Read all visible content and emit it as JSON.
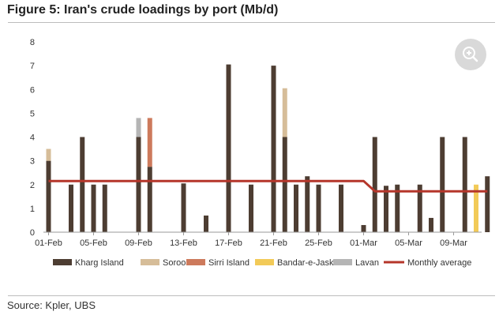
{
  "title": "Figure 5: Iran's crude loadings by port (Mb/d)",
  "source": "Source: Kpler, UBS",
  "colors": {
    "Kharg Island": "#4d3d32",
    "Soroosh": "#d6bd99",
    "Sirri Island": "#cd7a5c",
    "Bandar-e-Jask": "#f2ca58",
    "Lavan": "#b5b5b5",
    "Monthly average": "#b5362a"
  },
  "chart_data": {
    "type": "bar",
    "stacked": true,
    "title": "Figure 5: Iran's crude loadings by port (Mb/d)",
    "ylim": [
      0,
      8
    ],
    "yticks": [
      0,
      1,
      2,
      3,
      4,
      5,
      6,
      7,
      8
    ],
    "x_tick_labels": [
      "01-Feb",
      "05-Feb",
      "09-Feb",
      "13-Feb",
      "17-Feb",
      "21-Feb",
      "25-Feb",
      "01-Mar",
      "05-Mar",
      "09-Mar"
    ],
    "categories": [
      "01-Feb",
      "02-Feb",
      "03-Feb",
      "04-Feb",
      "05-Feb",
      "06-Feb",
      "07-Feb",
      "08-Feb",
      "09-Feb",
      "10-Feb",
      "11-Feb",
      "12-Feb",
      "13-Feb",
      "14-Feb",
      "15-Feb",
      "16-Feb",
      "17-Feb",
      "18-Feb",
      "19-Feb",
      "20-Feb",
      "21-Feb",
      "22-Feb",
      "23-Feb",
      "24-Feb",
      "25-Feb",
      "26-Feb",
      "27-Feb",
      "28-Feb",
      "01-Mar",
      "02-Mar",
      "03-Mar",
      "04-Mar",
      "05-Mar",
      "06-Mar",
      "07-Mar",
      "08-Mar",
      "09-Mar",
      "10-Mar",
      "11-Mar",
      "12-Mar"
    ],
    "series": [
      {
        "name": "Kharg Island",
        "values": [
          3.0,
          0,
          2.0,
          4.0,
          2.0,
          2.0,
          0,
          0,
          4.0,
          2.75,
          0,
          0,
          2.05,
          0,
          0.7,
          0,
          7.05,
          0,
          2.0,
          0,
          7.0,
          4.0,
          2.0,
          2.35,
          2.0,
          0,
          2.0,
          0,
          0.3,
          4.0,
          1.95,
          2.0,
          0,
          2.0,
          0.6,
          4.0,
          0,
          4.0,
          0,
          2.35
        ]
      },
      {
        "name": "Soroosh",
        "values": [
          0.5,
          0,
          0,
          0,
          0,
          0,
          0,
          0,
          0,
          0,
          0,
          0,
          0,
          0,
          0,
          0,
          0,
          0,
          0,
          0,
          0,
          2.05,
          0,
          0,
          0,
          0,
          0,
          0,
          0,
          0,
          0,
          0,
          0,
          0,
          0,
          0,
          0,
          0,
          0,
          0
        ]
      },
      {
        "name": "Sirri Island",
        "values": [
          0,
          0,
          0,
          0,
          0,
          0,
          0,
          0,
          0,
          2.05,
          0,
          0,
          0,
          0,
          0,
          0,
          0,
          0,
          0,
          0,
          0,
          0,
          0,
          0,
          0,
          0,
          0,
          0,
          0,
          0,
          0,
          0,
          0,
          0,
          0,
          0,
          0,
          0,
          0,
          0
        ]
      },
      {
        "name": "Bandar-e-Jask",
        "values": [
          0,
          0,
          0,
          0,
          0,
          0,
          0,
          0,
          0,
          0,
          0,
          0,
          0,
          0,
          0,
          0,
          0,
          0,
          0,
          0,
          0,
          0,
          0,
          0,
          0,
          0,
          0,
          0,
          0,
          0,
          0,
          0,
          0,
          0,
          0,
          0,
          0,
          0,
          2.0,
          0
        ]
      },
      {
        "name": "Lavan",
        "values": [
          0,
          0,
          0,
          0,
          0,
          0,
          0,
          0,
          0.8,
          0,
          0,
          0,
          0,
          0,
          0,
          0,
          0,
          0,
          0,
          0,
          0,
          0,
          0,
          0,
          0,
          0,
          0,
          0,
          0,
          0,
          0,
          0,
          0,
          0,
          0,
          0,
          0,
          0,
          0,
          0
        ]
      }
    ],
    "line_series": [
      {
        "name": "Monthly average",
        "values": [
          2.15,
          2.15,
          2.15,
          2.15,
          2.15,
          2.15,
          2.15,
          2.15,
          2.15,
          2.15,
          2.15,
          2.15,
          2.15,
          2.15,
          2.15,
          2.15,
          2.15,
          2.15,
          2.15,
          2.15,
          2.15,
          2.15,
          2.15,
          2.15,
          2.15,
          2.15,
          2.15,
          2.15,
          2.15,
          1.72,
          1.72,
          1.72,
          1.72,
          1.72,
          1.72,
          1.72,
          1.72,
          1.72,
          1.72,
          1.72
        ]
      }
    ],
    "legend": [
      "Kharg Island",
      "Soroosh",
      "Sirri Island",
      "Bandar-e-Jask",
      "Lavan",
      "Monthly average"
    ],
    "legend_position": "bottom",
    "grid": false
  }
}
